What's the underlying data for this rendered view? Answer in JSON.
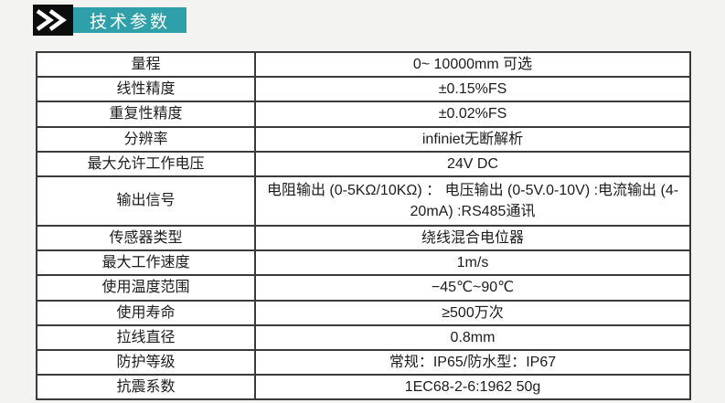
{
  "header": {
    "title": "技术参数",
    "accent_color": "#2f9fa9",
    "chevron_icon": "double-chevron-right-icon"
  },
  "table": {
    "rows": [
      {
        "label": "量程",
        "value": "0~ 10000mm 可选"
      },
      {
        "label": "线性精度",
        "value": "±0.15%FS"
      },
      {
        "label": "重复性精度",
        "value": "±0.02%FS"
      },
      {
        "label": "分辨率",
        "value": "infiniet无断解析"
      },
      {
        "label": "最大允许工作电压",
        "value": "24V DC"
      },
      {
        "label": "输出信号",
        "value": "电阻输出 (0-5KΩ/10KΩ) ： 电压输出 (0-5V.0-10V) :电流输出 (4-20mA) :RS485通讯",
        "tall": true
      },
      {
        "label": "传感器类型",
        "value": "绕线混合电位器"
      },
      {
        "label": "最大工作速度",
        "value": "1m/s"
      },
      {
        "label": "使用温度范围",
        "value": "−45℃~90℃"
      },
      {
        "label": "使用寿命",
        "value": "≥500万次"
      },
      {
        "label": "拉线直径",
        "value": "0.8mm"
      },
      {
        "label": "防护等级",
        "value": "常规：IP65/防水型：IP67"
      },
      {
        "label": "抗震系数",
        "value": "1EC68-2-6:1962 50g"
      }
    ]
  }
}
